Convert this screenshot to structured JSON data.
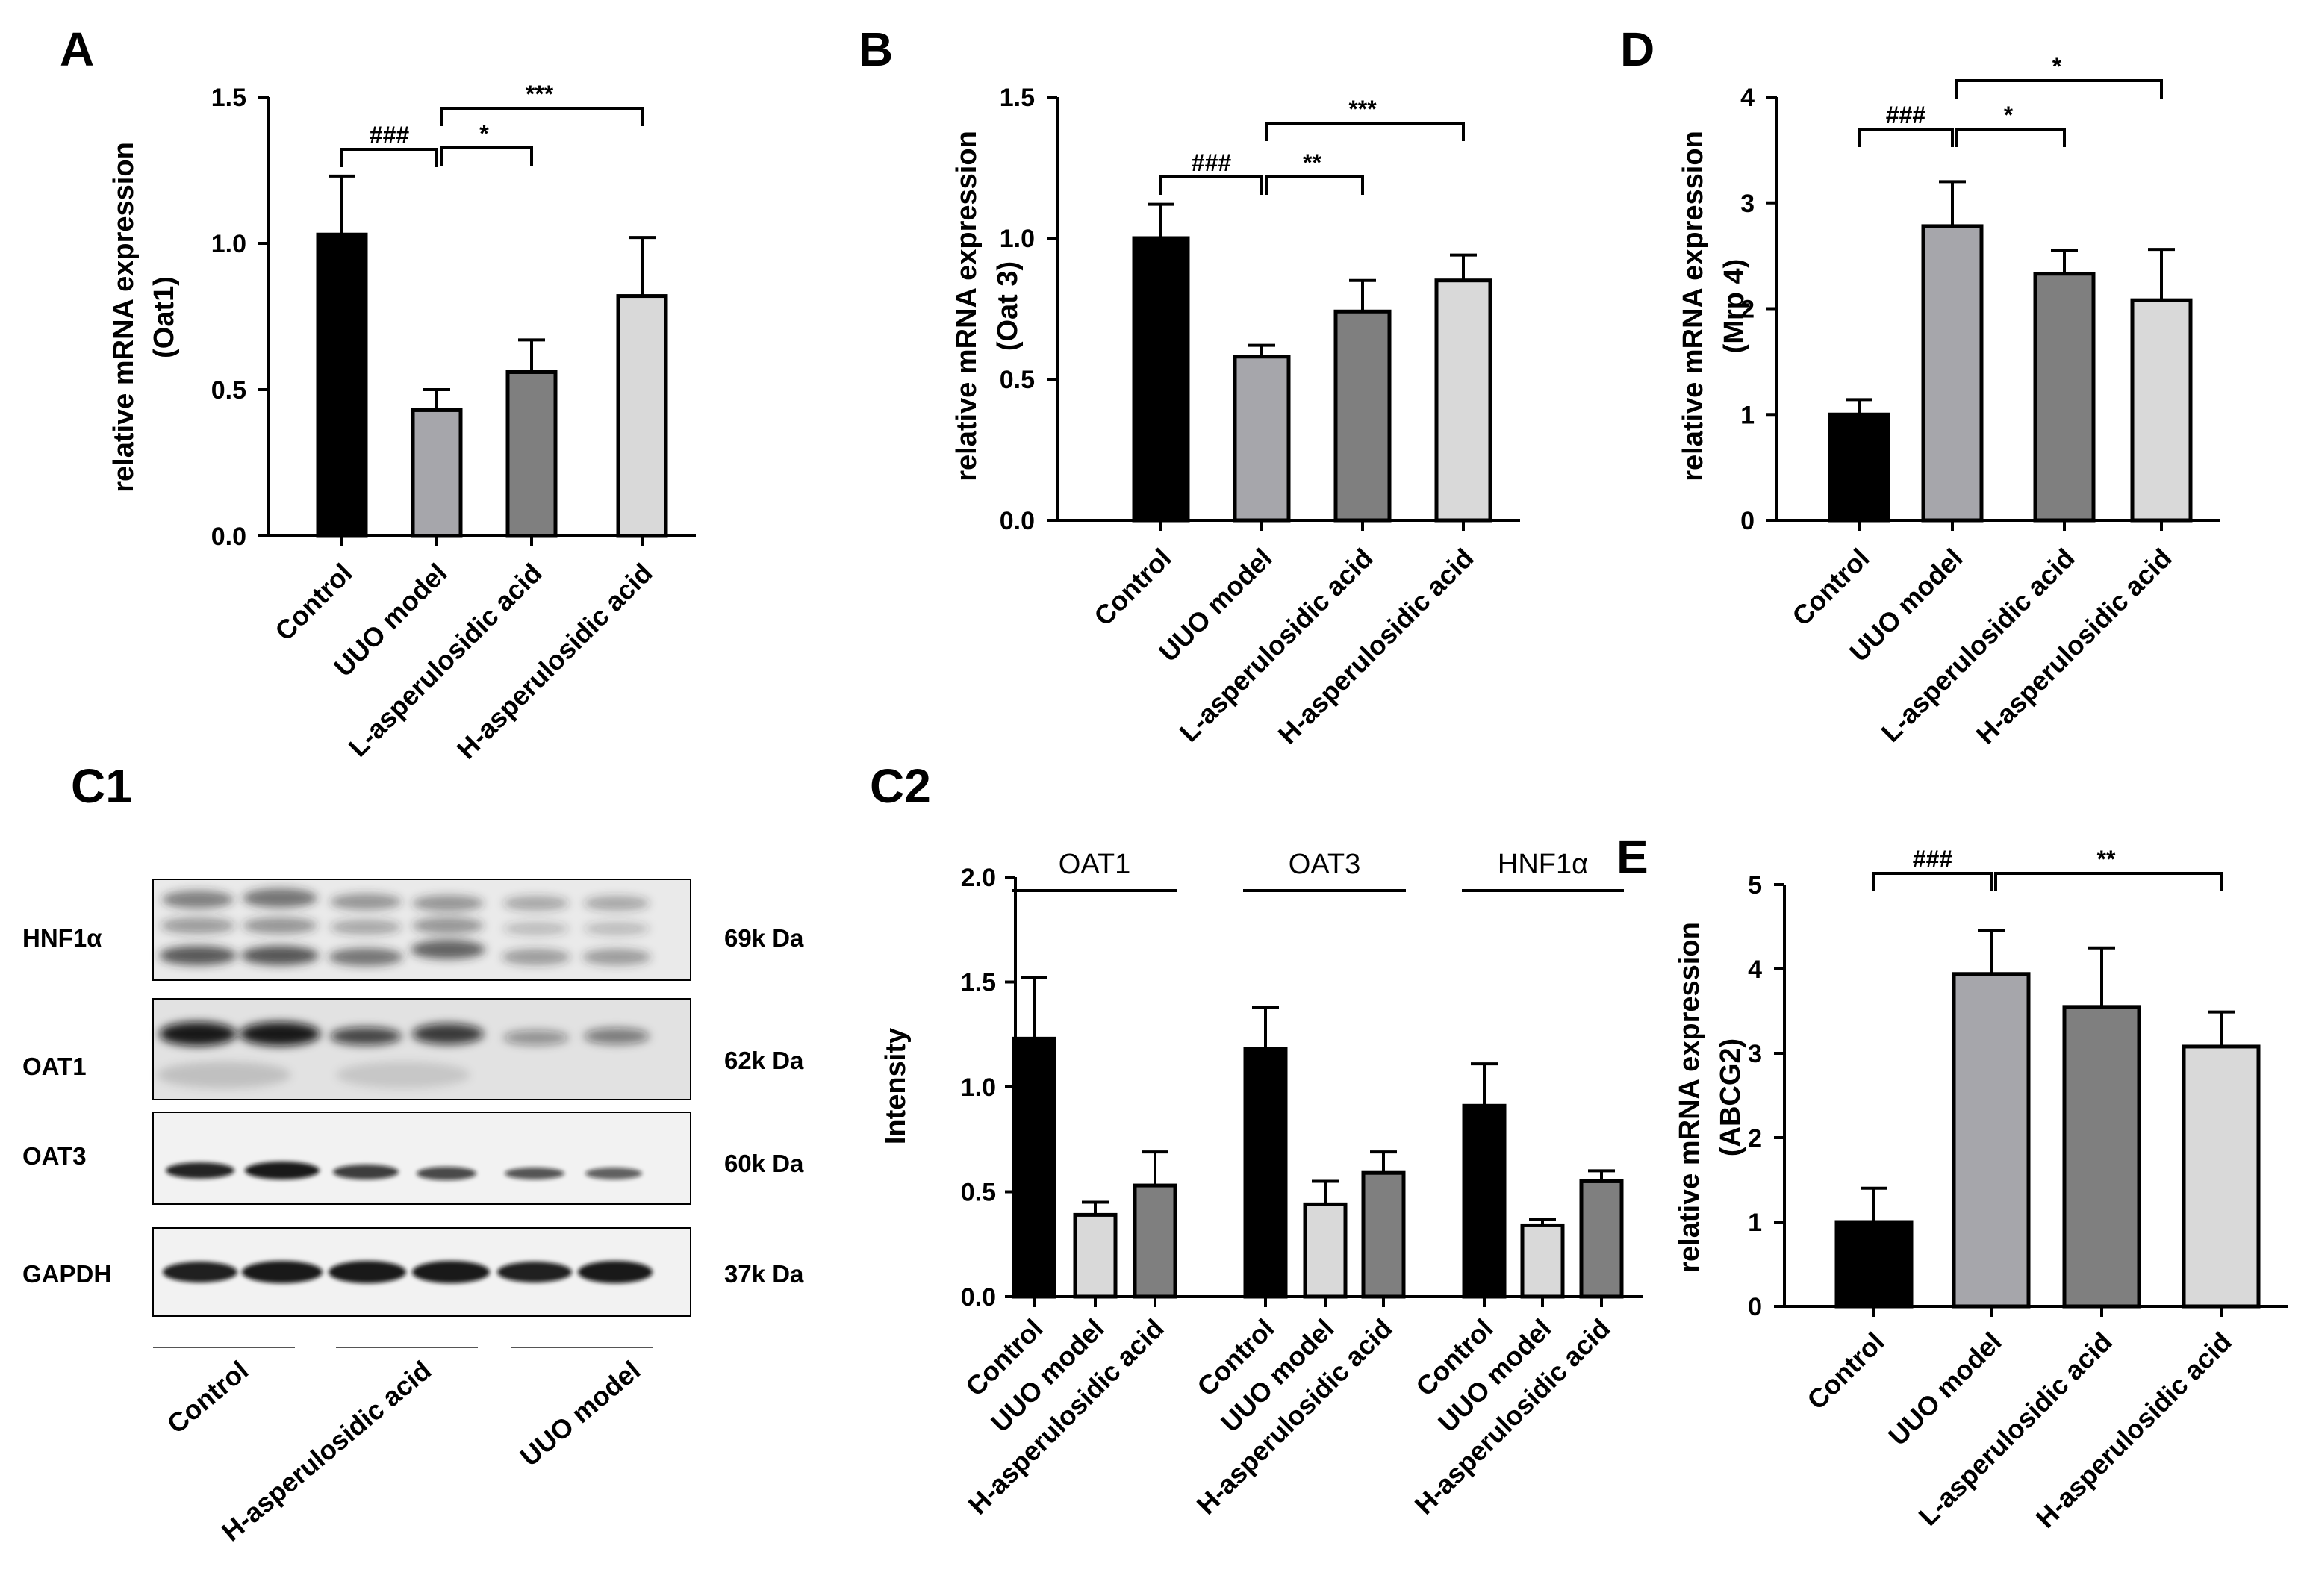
{
  "panel_letters": {
    "A": "A",
    "B": "B",
    "D": "D",
    "C1": "C1",
    "C2": "C2",
    "E": "E"
  },
  "categories4": [
    "Control",
    "UUO model",
    "L-asperulosidic acid",
    "H-asperulosidic acid"
  ],
  "colors": {
    "control": "#000000",
    "uuo": "#a6a6ab",
    "low": "#7f7f7f",
    "high": "#d9d9d9",
    "axis": "#000000"
  },
  "chart_data": [
    {
      "id": "A",
      "type": "bar",
      "ylabel_lines": [
        "relative mRNA expression",
        "(Oat1)"
      ],
      "ylim": [
        0,
        1.5
      ],
      "yticks": [
        "0.0",
        "0.5",
        "1.0",
        "1.5"
      ],
      "categories": [
        "Control",
        "UUO model",
        "L-asperulosidic acid",
        "H-asperulosidic acid"
      ],
      "values": [
        1.03,
        0.43,
        0.56,
        0.82
      ],
      "errors": [
        0.2,
        0.07,
        0.11,
        0.2
      ],
      "significance": [
        {
          "from": 0,
          "to": 1,
          "label": "###"
        },
        {
          "from": 1,
          "to": 2,
          "label": "*"
        },
        {
          "from": 1,
          "to": 3,
          "label": "***"
        }
      ]
    },
    {
      "id": "B",
      "type": "bar",
      "ylabel_lines": [
        "relative mRNA expression",
        "(Oat 3)"
      ],
      "ylim": [
        0,
        1.5
      ],
      "yticks": [
        "0.0",
        "0.5",
        "1.0",
        "1.5"
      ],
      "categories": [
        "Control",
        "UUO model",
        "L-asperulosidic acid",
        "H-asperulosidic acid"
      ],
      "values": [
        1.0,
        0.58,
        0.74,
        0.85
      ],
      "errors": [
        0.12,
        0.04,
        0.11,
        0.09
      ],
      "significance": [
        {
          "from": 0,
          "to": 1,
          "label": "###"
        },
        {
          "from": 1,
          "to": 2,
          "label": "**"
        },
        {
          "from": 1,
          "to": 3,
          "label": "***"
        }
      ]
    },
    {
      "id": "D",
      "type": "bar",
      "ylabel_lines": [
        "relative mRNA expression",
        "(Mrp 4)"
      ],
      "ylim": [
        0,
        4
      ],
      "yticks": [
        "0",
        "1",
        "2",
        "3",
        "4"
      ],
      "categories": [
        "Control",
        "UUO model",
        "L-asperulosidic acid",
        "H-asperulosidic acid"
      ],
      "values": [
        1.0,
        2.78,
        2.33,
        2.08
      ],
      "errors": [
        0.14,
        0.42,
        0.22,
        0.48
      ],
      "significance": [
        {
          "from": 0,
          "to": 1,
          "label": "###"
        },
        {
          "from": 1,
          "to": 2,
          "label": "*"
        },
        {
          "from": 1,
          "to": 3,
          "label": "*"
        }
      ]
    },
    {
      "id": "C2",
      "type": "bar",
      "ylabel": "Intensity",
      "ylim": [
        0,
        2.0
      ],
      "yticks": [
        "0.0",
        "0.5",
        "1.0",
        "1.5",
        "2.0"
      ],
      "groups": [
        "OAT1",
        "OAT3",
        "HNF1α"
      ],
      "categories": [
        "Control",
        "UUO model",
        "H-asperulosidic acid"
      ],
      "series": [
        {
          "group": "OAT1",
          "values": [
            1.23,
            0.39,
            0.53
          ],
          "errors": [
            0.29,
            0.06,
            0.16
          ]
        },
        {
          "group": "OAT3",
          "values": [
            1.18,
            0.44,
            0.59
          ],
          "errors": [
            0.2,
            0.11,
            0.1
          ]
        },
        {
          "group": "HNF1α",
          "values": [
            0.91,
            0.34,
            0.55
          ],
          "errors": [
            0.2,
            0.03,
            0.05
          ]
        }
      ]
    },
    {
      "id": "E",
      "type": "bar",
      "ylabel_lines": [
        "relative mRNA expression",
        "(ABCG2)"
      ],
      "ylim": [
        0,
        5
      ],
      "yticks": [
        "0",
        "1",
        "2",
        "3",
        "4",
        "5"
      ],
      "categories": [
        "Control",
        "UUO model",
        "L-asperulosidic acid",
        "H-asperulosidic acid"
      ],
      "values": [
        1.0,
        3.94,
        3.55,
        3.08
      ],
      "errors": [
        0.4,
        0.52,
        0.7,
        0.41
      ],
      "significance": [
        {
          "from": 0,
          "to": 1,
          "label": "###"
        },
        {
          "from": 1,
          "to": 3,
          "label": "**"
        }
      ]
    }
  ],
  "blot": {
    "rows": [
      {
        "protein": "HNF1α",
        "size": "69k Da"
      },
      {
        "protein": "OAT1",
        "size": "62k Da"
      },
      {
        "protein": "OAT3",
        "size": "60k Da"
      },
      {
        "protein": "GAPDH",
        "size": "37k Da"
      }
    ],
    "lane_groups": [
      "Control",
      "H-asperulosidic acid",
      "UUO model"
    ]
  }
}
